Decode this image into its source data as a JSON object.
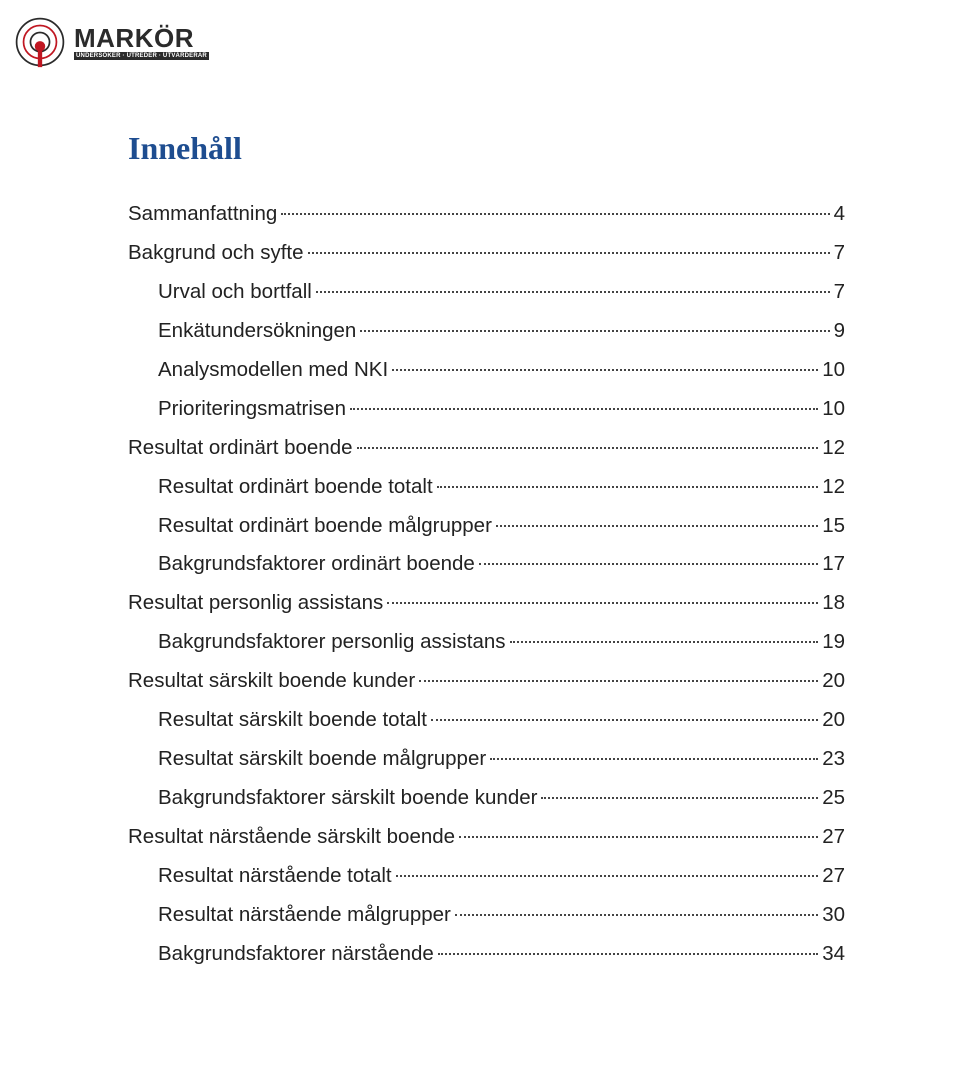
{
  "logo": {
    "word": "MARKÖR",
    "tagline": "UNDERSÖKER · UTREDER · UTVÄRDERAR",
    "ring_color": "#2b2b2b",
    "inner_color": "#c01722"
  },
  "title": "Innehåll",
  "title_color": "#1e4d90",
  "text_color": "#222222",
  "font_size_pt": 15,
  "toc": [
    {
      "label": "Sammanfattning",
      "page": "4",
      "indent": 0
    },
    {
      "label": "Bakgrund och syfte",
      "page": "7",
      "indent": 0
    },
    {
      "label": "Urval och bortfall",
      "page": "7",
      "indent": 1
    },
    {
      "label": "Enkätundersökningen",
      "page": "9",
      "indent": 1
    },
    {
      "label": "Analysmodellen med NKI",
      "page": "10",
      "indent": 1
    },
    {
      "label": "Prioriteringsmatrisen",
      "page": "10",
      "indent": 1
    },
    {
      "label": "Resultat ordinärt boende",
      "page": "12",
      "indent": 0
    },
    {
      "label": "Resultat ordinärt boende totalt",
      "page": "12",
      "indent": 1
    },
    {
      "label": "Resultat ordinärt boende målgrupper",
      "page": "15",
      "indent": 1
    },
    {
      "label": "Bakgrundsfaktorer ordinärt boende",
      "page": "17",
      "indent": 1
    },
    {
      "label": "Resultat personlig assistans",
      "page": "18",
      "indent": 0
    },
    {
      "label": "Bakgrundsfaktorer personlig assistans",
      "page": "19",
      "indent": 1
    },
    {
      "label": "Resultat särskilt boende kunder",
      "page": "20",
      "indent": 0
    },
    {
      "label": "Resultat särskilt boende totalt",
      "page": "20",
      "indent": 1
    },
    {
      "label": "Resultat särskilt boende målgrupper",
      "page": "23",
      "indent": 1
    },
    {
      "label": "Bakgrundsfaktorer särskilt boende kunder",
      "page": "25",
      "indent": 1
    },
    {
      "label": "Resultat närstående särskilt boende",
      "page": "27",
      "indent": 0
    },
    {
      "label": "Resultat närstående totalt",
      "page": "27",
      "indent": 1
    },
    {
      "label": "Resultat närstående målgrupper",
      "page": "30",
      "indent": 1
    },
    {
      "label": "Bakgrundsfaktorer närstående",
      "page": "34",
      "indent": 1
    }
  ]
}
